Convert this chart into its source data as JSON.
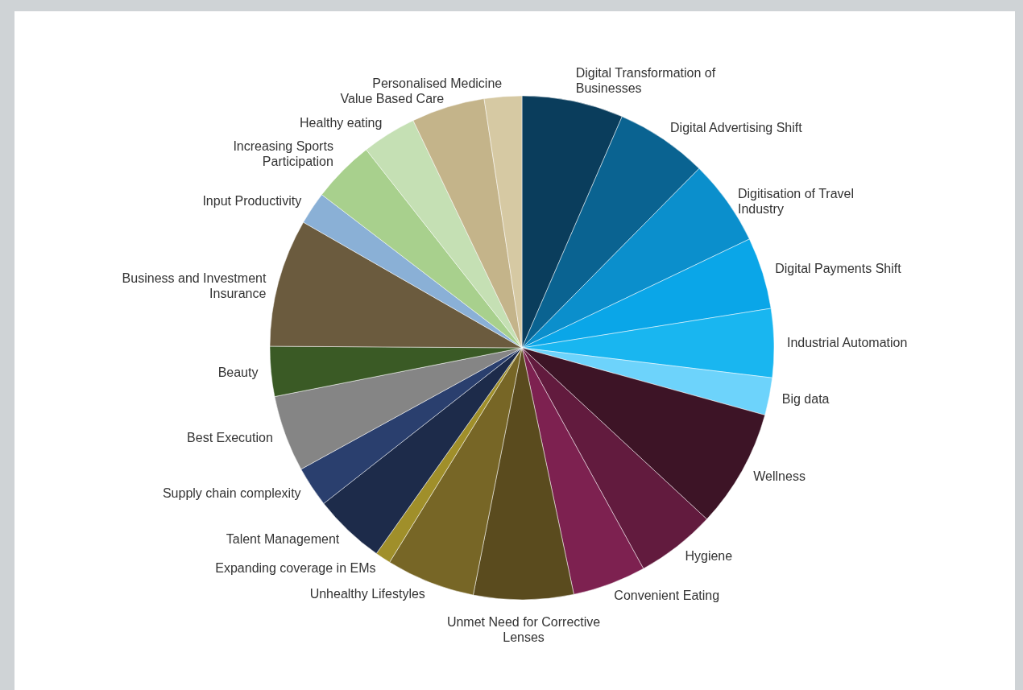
{
  "chart_data": {
    "type": "pie",
    "categories": [
      "Digital Transformation of Businesses",
      "Digital Advertising Shift",
      "Digitisation of Travel Industry",
      "Digital Payments Shift",
      "Industrial Automation",
      "Big data",
      "Wellness",
      "Hygiene",
      "Convenient Eating",
      "Unmet Need for Corrective Lenses",
      "Unhealthy Lifestyles",
      "Expanding coverage in EMs",
      "Talent Management",
      "Supply chain complexity",
      "Best Execution",
      "Beauty",
      "Business and Investment Insurance",
      "Input Productivity",
      "Increasing Sports Participation",
      "Healthy eating",
      "Value Based Care",
      "Personalised Medicine"
    ],
    "values": [
      6.5,
      5.9,
      5.5,
      4.6,
      4.4,
      2.4,
      7.6,
      5.1,
      4.7,
      6.4,
      5.7,
      1.0,
      4.6,
      2.6,
      4.9,
      3.2,
      8.2,
      2.1,
      4.0,
      3.5,
      4.7,
      2.4
    ],
    "colors": [
      "#0a3d5c",
      "#0a6391",
      "#0b8fcc",
      "#0aa6e8",
      "#19b6f0",
      "#6dd3fb",
      "#3d1426",
      "#621b3e",
      "#7d2150",
      "#5a4b1e",
      "#776626",
      "#a08f2a",
      "#1d2b4a",
      "#2a3f6e",
      "#858585",
      "#3a5a25",
      "#6b5b3e",
      "#8ab0d6",
      "#a8d08d",
      "#c5e0b4",
      "#c4b48a",
      "#d6c9a3"
    ]
  }
}
